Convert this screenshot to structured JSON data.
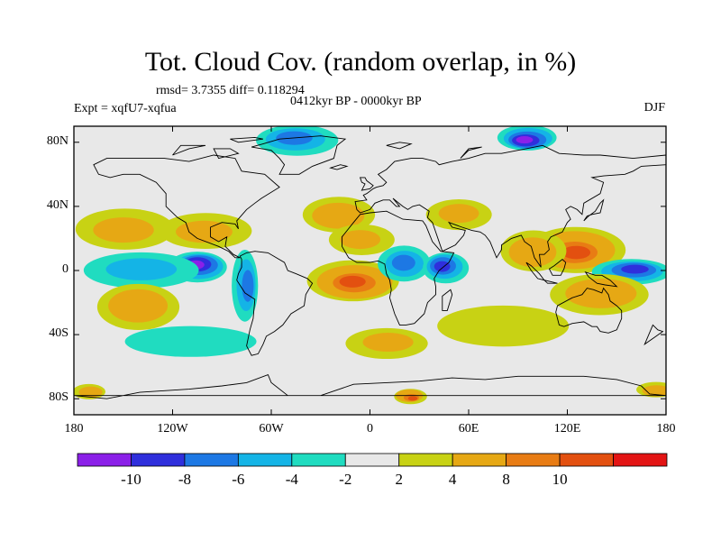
{
  "title": "Tot. Cloud Cov. (random overlap, in %)",
  "stats": "rmsd= 3.7355 diff= 0.118294",
  "experiment": "Expt = xqfU7-xqfua",
  "period": "0412kyr BP - 0000kyr BP",
  "season": "DJF",
  "chart_data": {
    "type": "filled-contour-map",
    "variable": "Total cloud cover difference (%)",
    "projection": "cylindrical equidistant",
    "lon_range": [
      -180,
      180
    ],
    "lat_range": [
      -90,
      90
    ],
    "x_ticks": [
      {
        "value": -180,
        "label": "180"
      },
      {
        "value": -120,
        "label": "120W"
      },
      {
        "value": -60,
        "label": "60W"
      },
      {
        "value": 0,
        "label": "0"
      },
      {
        "value": 60,
        "label": "60E"
      },
      {
        "value": 120,
        "label": "120E"
      },
      {
        "value": 180,
        "label": "180"
      }
    ],
    "y_ticks": [
      {
        "value": 80,
        "label": "80N"
      },
      {
        "value": 40,
        "label": "40N"
      },
      {
        "value": 0,
        "label": "0"
      },
      {
        "value": -40,
        "label": "40S"
      },
      {
        "value": -80,
        "label": "80S"
      }
    ],
    "colorbar": {
      "labels": [
        "-10",
        "-8",
        "-6",
        "-4",
        "-2",
        "2",
        "4",
        "8",
        "10"
      ],
      "colors": [
        "#8b20e8",
        "#2f2fdc",
        "#1d78e4",
        "#14b4e6",
        "#20dcc0",
        "#e8e8e8",
        "#c8d214",
        "#e6a814",
        "#e87c14",
        "#e35010",
        "#e31414"
      ]
    },
    "anomalies": [
      {
        "lon": -105,
        "lat": 3,
        "value": -10,
        "extent": [
          18,
          6
        ]
      },
      {
        "lon": -140,
        "lat": 0,
        "value": -5,
        "extent": [
          35,
          7
        ]
      },
      {
        "lon": -150,
        "lat": 25,
        "value": 5,
        "extent": [
          30,
          8
        ]
      },
      {
        "lon": -100,
        "lat": 25,
        "value": 5,
        "extent": [
          28,
          7
        ]
      },
      {
        "lon": -140,
        "lat": -22,
        "value": 7,
        "extent": [
          25,
          9
        ]
      },
      {
        "lon": -75,
        "lat": -10,
        "value": -6,
        "extent": [
          8,
          14
        ]
      },
      {
        "lon": -10,
        "lat": -7,
        "value": 10,
        "extent": [
          28,
          8
        ]
      },
      {
        "lon": 20,
        "lat": 5,
        "value": -7,
        "extent": [
          16,
          7
        ]
      },
      {
        "lon": 45,
        "lat": 2,
        "value": -8,
        "extent": [
          14,
          6
        ]
      },
      {
        "lon": 125,
        "lat": 12,
        "value": 10,
        "extent": [
          30,
          9
        ]
      },
      {
        "lon": 100,
        "lat": 12,
        "value": 7,
        "extent": [
          20,
          8
        ]
      },
      {
        "lon": 160,
        "lat": 0,
        "value": -9,
        "extent": [
          24,
          5
        ]
      },
      {
        "lon": 140,
        "lat": -15,
        "value": 7,
        "extent": [
          30,
          8
        ]
      },
      {
        "lon": 95,
        "lat": 82,
        "value": -10,
        "extent": [
          18,
          5
        ]
      },
      {
        "lon": -20,
        "lat": 35,
        "value": 6,
        "extent": [
          22,
          7
        ]
      },
      {
        "lon": -45,
        "lat": 82,
        "value": -6,
        "extent": [
          25,
          6
        ]
      },
      {
        "lon": 25,
        "lat": -79,
        "value": 10,
        "extent": [
          10,
          3
        ]
      },
      {
        "lon": 175,
        "lat": -75,
        "value": 6,
        "extent": [
          12,
          3
        ]
      },
      {
        "lon": -170,
        "lat": -75,
        "value": 6,
        "extent": [
          10,
          3
        ]
      },
      {
        "lon": 10,
        "lat": -45,
        "value": 4,
        "extent": [
          25,
          6
        ]
      },
      {
        "lon": -110,
        "lat": -45,
        "value": -3,
        "extent": [
          40,
          6
        ]
      },
      {
        "lon": 80,
        "lat": -35,
        "value": 3,
        "extent": [
          40,
          8
        ]
      },
      {
        "lon": -5,
        "lat": 20,
        "value": 4,
        "extent": [
          20,
          6
        ]
      },
      {
        "lon": 55,
        "lat": 35,
        "value": 4,
        "extent": [
          20,
          6
        ]
      }
    ]
  }
}
